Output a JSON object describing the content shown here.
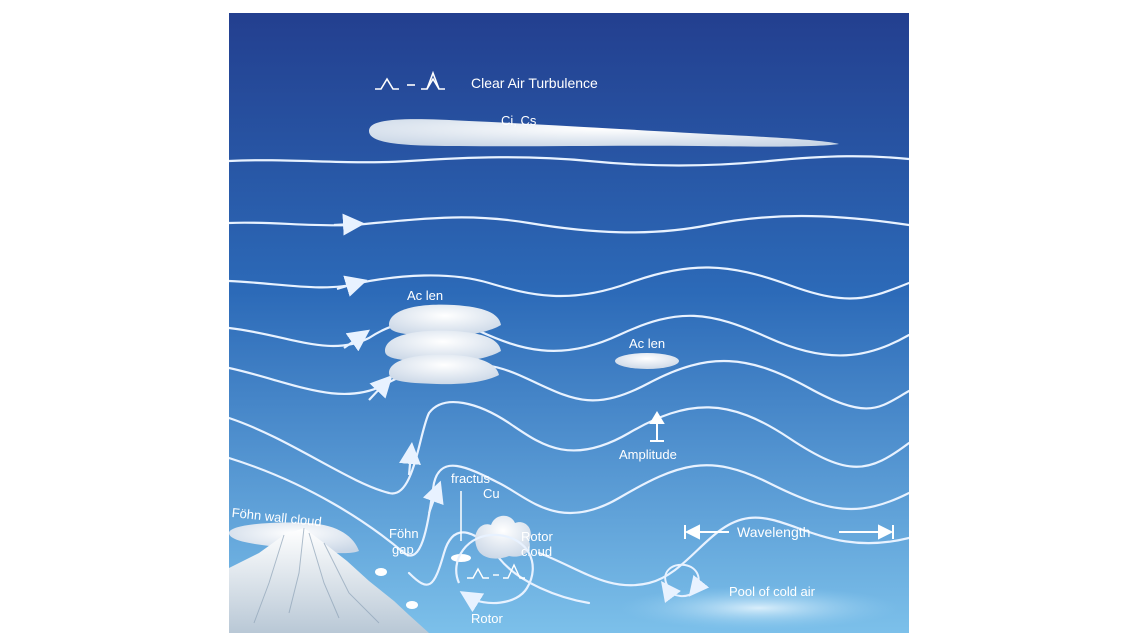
{
  "labels": {
    "clear_air_turbulence": "Clear Air Turbulence",
    "ci_cs": "Ci, Cs",
    "ac_len_left": "Ac len",
    "ac_len_right": "Ac len",
    "amplitude": "Amplitude",
    "fractus_line1": "fractus",
    "fractus_line2": "Cu",
    "fohn_wall_cloud": "Föhn wall cloud",
    "fohn_gap_line1": "Föhn",
    "fohn_gap_line2": "gap",
    "rotor_cloud_line1": "Rotor",
    "rotor_cloud_line2": "cloud",
    "rotor": "Rotor",
    "wavelength": "Wavelength",
    "pool_cold_air": "Pool of cold air"
  },
  "colors": {
    "sky_top": "#233f8f",
    "sky_mid": "#2c6ab8",
    "sky_bottom": "#7cc0ea",
    "streamline": "#e8f2ff",
    "cloud": "#f4f7fb",
    "mountain": "#eef3f8"
  }
}
